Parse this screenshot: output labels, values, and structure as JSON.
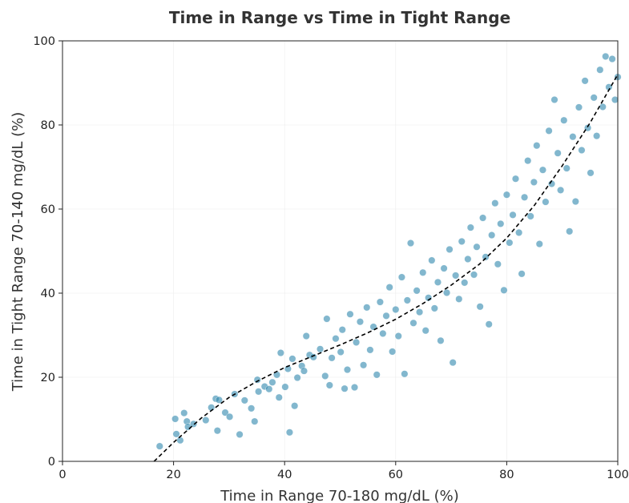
{
  "chart_data": {
    "type": "scatter",
    "title": "Time in Range vs Time in Tight Range",
    "xlabel": "Time in Range 70-180 mg/dL (%)",
    "ylabel": "Time in Tight Range 70-140 mg/dL (%)",
    "xlim": [
      0,
      100
    ],
    "ylim": [
      0,
      100
    ],
    "xticks": [
      0,
      20,
      40,
      60,
      80,
      100
    ],
    "yticks": [
      0,
      20,
      40,
      60,
      80,
      100
    ],
    "grid": true,
    "colors": {
      "points": "#2f87ad",
      "fit_line": "#000000"
    },
    "fit_line": {
      "style": "dashed",
      "points": [
        [
          16.5,
          0
        ],
        [
          20,
          4.5
        ],
        [
          25,
          10.3
        ],
        [
          30,
          15.2
        ],
        [
          35,
          19.0
        ],
        [
          40,
          22.3
        ],
        [
          45,
          25.0
        ],
        [
          50,
          27.7
        ],
        [
          55,
          30.6
        ],
        [
          60,
          33.8
        ],
        [
          65,
          37.6
        ],
        [
          70,
          41.9
        ],
        [
          75,
          46.8
        ],
        [
          80,
          53.1
        ],
        [
          85,
          60.9
        ],
        [
          90,
          70.3
        ],
        [
          95,
          80.5
        ],
        [
          100,
          92.0
        ]
      ]
    },
    "series": [
      {
        "points": [
          [
            17.5,
            3.6
          ],
          [
            20.3,
            10.1
          ],
          [
            20.5,
            6.5
          ],
          [
            21.2,
            5.0
          ],
          [
            21.9,
            11.5
          ],
          [
            22.4,
            9.5
          ],
          [
            22.6,
            8.2
          ],
          [
            23.6,
            8.9
          ],
          [
            25.8,
            9.8
          ],
          [
            26.8,
            12.8
          ],
          [
            27.6,
            14.9
          ],
          [
            27.9,
            7.3
          ],
          [
            28.2,
            14.6
          ],
          [
            29.3,
            11.6
          ],
          [
            30.1,
            10.6
          ],
          [
            31.0,
            16.0
          ],
          [
            31.9,
            6.4
          ],
          [
            32.8,
            14.5
          ],
          [
            34.0,
            12.6
          ],
          [
            34.6,
            9.5
          ],
          [
            35.3,
            16.6
          ],
          [
            35.1,
            19.4
          ],
          [
            36.4,
            17.8
          ],
          [
            37.2,
            17.2
          ],
          [
            37.8,
            18.8
          ],
          [
            38.6,
            20.6
          ],
          [
            39.0,
            15.2
          ],
          [
            39.3,
            25.8
          ],
          [
            40.1,
            17.7
          ],
          [
            40.6,
            22.0
          ],
          [
            40.9,
            6.9
          ],
          [
            41.4,
            24.4
          ],
          [
            41.8,
            13.2
          ],
          [
            42.3,
            19.9
          ],
          [
            43.1,
            22.7
          ],
          [
            43.5,
            21.5
          ],
          [
            43.9,
            29.8
          ],
          [
            44.5,
            25.3
          ],
          [
            45.2,
            24.8
          ],
          [
            46.4,
            26.7
          ],
          [
            47.3,
            20.3
          ],
          [
            47.6,
            33.9
          ],
          [
            48.1,
            18.1
          ],
          [
            48.5,
            24.6
          ],
          [
            49.2,
            29.2
          ],
          [
            50.1,
            26.0
          ],
          [
            50.4,
            31.3
          ],
          [
            50.8,
            17.3
          ],
          [
            51.3,
            21.8
          ],
          [
            51.8,
            35.0
          ],
          [
            52.6,
            17.6
          ],
          [
            52.9,
            28.3
          ],
          [
            53.6,
            33.2
          ],
          [
            54.2,
            22.9
          ],
          [
            54.8,
            36.6
          ],
          [
            55.4,
            26.5
          ],
          [
            56.0,
            32.0
          ],
          [
            56.6,
            20.6
          ],
          [
            57.2,
            37.9
          ],
          [
            57.7,
            30.4
          ],
          [
            58.3,
            34.6
          ],
          [
            58.9,
            41.4
          ],
          [
            59.4,
            26.1
          ],
          [
            60.0,
            36.1
          ],
          [
            60.5,
            29.8
          ],
          [
            61.1,
            43.8
          ],
          [
            61.6,
            20.8
          ],
          [
            62.1,
            38.3
          ],
          [
            62.7,
            51.9
          ],
          [
            63.2,
            32.9
          ],
          [
            63.8,
            40.6
          ],
          [
            64.3,
            35.5
          ],
          [
            64.9,
            44.9
          ],
          [
            65.4,
            31.1
          ],
          [
            65.9,
            38.9
          ],
          [
            66.5,
            47.8
          ],
          [
            67.0,
            36.4
          ],
          [
            67.6,
            42.6
          ],
          [
            68.1,
            28.7
          ],
          [
            68.7,
            45.9
          ],
          [
            69.2,
            40.1
          ],
          [
            69.7,
            50.4
          ],
          [
            70.3,
            23.5
          ],
          [
            70.8,
            44.2
          ],
          [
            71.4,
            38.6
          ],
          [
            71.9,
            52.3
          ],
          [
            72.4,
            42.5
          ],
          [
            73.0,
            48.1
          ],
          [
            73.5,
            55.6
          ],
          [
            74.1,
            44.4
          ],
          [
            74.6,
            51.0
          ],
          [
            75.2,
            36.8
          ],
          [
            75.7,
            57.9
          ],
          [
            76.2,
            48.6
          ],
          [
            76.8,
            32.6
          ],
          [
            77.3,
            53.8
          ],
          [
            77.9,
            61.4
          ],
          [
            78.4,
            46.9
          ],
          [
            78.9,
            56.5
          ],
          [
            79.5,
            40.7
          ],
          [
            80.0,
            63.4
          ],
          [
            80.5,
            52.0
          ],
          [
            81.1,
            58.6
          ],
          [
            81.6,
            67.2
          ],
          [
            82.2,
            54.4
          ],
          [
            82.7,
            44.6
          ],
          [
            83.2,
            62.8
          ],
          [
            83.8,
            71.5
          ],
          [
            84.3,
            58.3
          ],
          [
            84.9,
            66.4
          ],
          [
            85.4,
            75.1
          ],
          [
            85.9,
            51.7
          ],
          [
            86.5,
            69.3
          ],
          [
            87.0,
            61.7
          ],
          [
            87.6,
            78.6
          ],
          [
            88.1,
            66.0
          ],
          [
            88.6,
            86.0
          ],
          [
            89.2,
            73.3
          ],
          [
            89.7,
            64.5
          ],
          [
            90.3,
            81.1
          ],
          [
            90.8,
            69.7
          ],
          [
            91.3,
            54.7
          ],
          [
            91.9,
            77.2
          ],
          [
            92.4,
            61.8
          ],
          [
            93.0,
            84.2
          ],
          [
            93.5,
            74.0
          ],
          [
            94.1,
            90.5
          ],
          [
            94.6,
            79.3
          ],
          [
            95.1,
            68.6
          ],
          [
            95.7,
            86.5
          ],
          [
            96.2,
            77.4
          ],
          [
            96.8,
            93.1
          ],
          [
            97.3,
            84.3
          ],
          [
            97.8,
            96.3
          ],
          [
            98.4,
            89.0
          ],
          [
            99.0,
            95.7
          ],
          [
            99.5,
            86.0
          ],
          [
            100.0,
            91.4
          ]
        ]
      }
    ]
  }
}
